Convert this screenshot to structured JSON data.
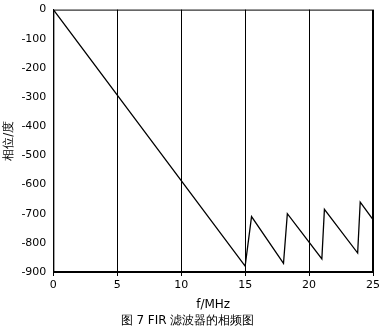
{
  "chart_data": {
    "type": "line",
    "title": "图 7 FIR 滤波器的相频图",
    "x_label": "f/MHz",
    "y_label": "相位/度",
    "x": [
      0,
      15,
      15.5,
      18,
      18.3,
      21,
      21.2,
      23.8,
      24,
      25
    ],
    "values": [
      0,
      -880,
      -710,
      -870,
      -700,
      -855,
      -685,
      -835,
      -660,
      -720
    ],
    "color": "#000000",
    "xlim": [
      0,
      25
    ],
    "xticks": [
      0,
      5,
      10,
      15,
      20,
      25
    ],
    "ylim": [
      -900,
      0
    ],
    "yticks": [
      -900,
      -800,
      -700,
      -600,
      -500,
      -400,
      -300,
      -200,
      -100,
      0
    ],
    "grid": "x"
  }
}
